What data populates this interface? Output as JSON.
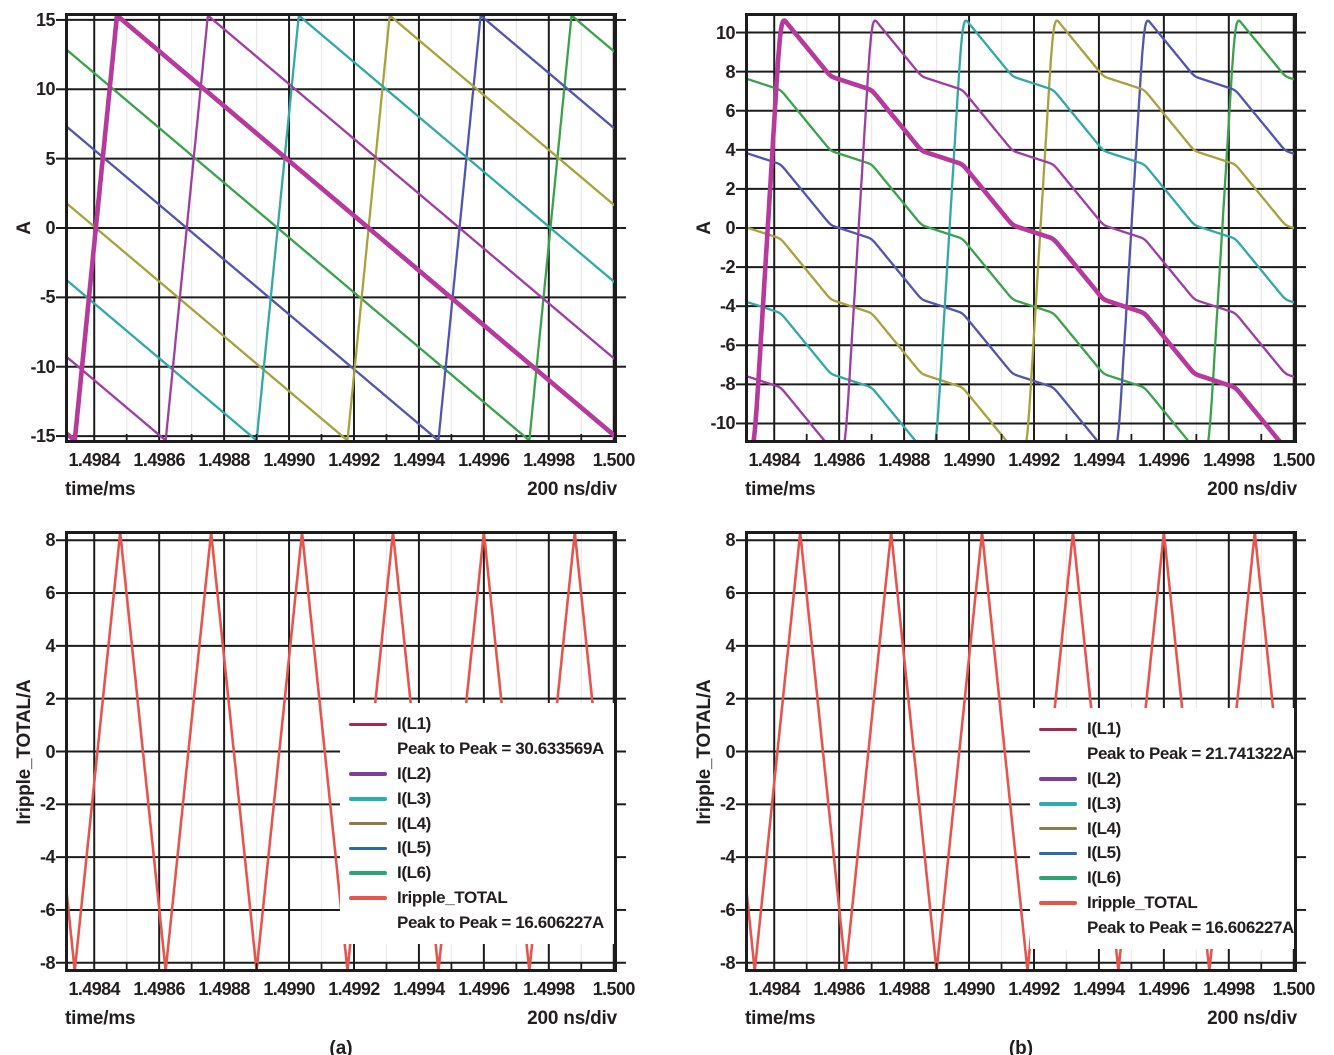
{
  "styles": {
    "background": "#ffffff",
    "text_color": "#221e1f",
    "frame_color": "#1c1c1c",
    "grid_major": "#1c1c1c",
    "grid_minor": "#ebebee",
    "legend_background": "#ffffff"
  },
  "chart_data": [
    {
      "id": "phase-currents-uncoupled",
      "type": "line",
      "position": "top-left",
      "ylabel": "A",
      "xlabel": "time/ms",
      "xnote": "200 ns/div",
      "xlim": [
        1.49831,
        1.50001
      ],
      "ylim": [
        -15.5,
        15.5
      ],
      "xtick_values": [
        1.4984,
        1.4986,
        1.4988,
        1.499,
        1.4992,
        1.4994,
        1.4996,
        1.4998,
        1.5
      ],
      "xtick_labels": [
        "1.4984",
        "1.4986",
        "1.4988",
        "1.4990",
        "1.4992",
        "1.4994",
        "1.4996",
        "1.4998",
        "1.500"
      ],
      "ytick_values": [
        15,
        10,
        5,
        0,
        -5,
        -10,
        -15
      ],
      "ytick_labels": [
        "15",
        "10",
        "5",
        "0",
        "-5",
        "-10",
        "-15"
      ],
      "minor_x_positions": [
        1.4985,
        1.4987,
        1.4989,
        1.4991,
        1.4993,
        1.4995,
        1.4997,
        1.4999
      ],
      "grid": true,
      "peak_to_peak_phase": "30.633569A",
      "series": [
        {
          "name": "I(L1)",
          "color": "#b6399c",
          "width": 4.6,
          "kind": "sawtooth",
          "min": -15.32,
          "max": 15.32,
          "rise_start": 1.49834,
          "rise_dur": 0.00013,
          "period": 0.00168
        },
        {
          "name": "I(L2)",
          "color": "#9c3ea2",
          "width": 2.3,
          "kind": "sawtooth",
          "min": -15.32,
          "max": 15.32,
          "rise_start": 1.49862,
          "rise_dur": 0.00013,
          "period": 0.00168
        },
        {
          "name": "I(L3)",
          "color": "#33a8a5",
          "width": 2.3,
          "kind": "sawtooth",
          "min": -15.32,
          "max": 15.32,
          "rise_start": 1.4989,
          "rise_dur": 0.00013,
          "period": 0.00168
        },
        {
          "name": "I(L4)",
          "color": "#a7a23e",
          "width": 2.3,
          "kind": "sawtooth",
          "min": -15.32,
          "max": 15.32,
          "rise_start": 1.49918,
          "rise_dur": 0.00013,
          "period": 0.00168
        },
        {
          "name": "I(L5)",
          "color": "#5056ae",
          "width": 2.3,
          "kind": "sawtooth",
          "min": -15.32,
          "max": 15.32,
          "rise_start": 1.49946,
          "rise_dur": 0.00013,
          "period": 0.00168
        },
        {
          "name": "I(L6)",
          "color": "#3ba24c",
          "width": 2.3,
          "kind": "sawtooth",
          "min": -15.32,
          "max": 15.32,
          "rise_start": 1.49974,
          "rise_dur": 0.00013,
          "period": 0.00168
        }
      ]
    },
    {
      "id": "phase-currents-coupled",
      "type": "line",
      "position": "top-right",
      "ylabel": "A",
      "xlabel": "time/ms",
      "xnote": "200 ns/div",
      "xlim": [
        1.49831,
        1.50001
      ],
      "ylim": [
        -11,
        11
      ],
      "xtick_values": [
        1.4984,
        1.4986,
        1.4988,
        1.499,
        1.4992,
        1.4994,
        1.4996,
        1.4998,
        1.5
      ],
      "xtick_labels": [
        "1.4984",
        "1.4986",
        "1.4988",
        "1.4990",
        "1.4992",
        "1.4994",
        "1.4996",
        "1.4998",
        "1.500"
      ],
      "ytick_values": [
        10,
        8,
        6,
        4,
        2,
        0,
        -2,
        -4,
        -6,
        -8,
        -10
      ],
      "ytick_labels": [
        "10",
        "8",
        "6",
        "4",
        "2",
        "0",
        "-2",
        "-4",
        "-6",
        "-8",
        "-10"
      ],
      "minor_x_positions": [
        1.4985,
        1.4987,
        1.4989,
        1.4991,
        1.4993,
        1.4995,
        1.4997,
        1.4999
      ],
      "grid": true,
      "peak_to_peak_phase": "21.741322A",
      "series": [
        {
          "name": "I(L1)",
          "color": "#b6399c",
          "width": 4.6,
          "kind": "coupled",
          "min": -10.87,
          "max": 10.87,
          "rise_start": 1.49834,
          "rise_dur": 8e-05,
          "period": 0.00168
        },
        {
          "name": "I(L2)",
          "color": "#9c3ea2",
          "width": 2.3,
          "kind": "coupled",
          "min": -10.87,
          "max": 10.87,
          "rise_start": 1.49862,
          "rise_dur": 8e-05,
          "period": 0.00168
        },
        {
          "name": "I(L3)",
          "color": "#33a8a5",
          "width": 2.3,
          "kind": "coupled",
          "min": -10.87,
          "max": 10.87,
          "rise_start": 1.4989,
          "rise_dur": 8e-05,
          "period": 0.00168
        },
        {
          "name": "I(L4)",
          "color": "#a7a23e",
          "width": 2.3,
          "kind": "coupled",
          "min": -10.87,
          "max": 10.87,
          "rise_start": 1.49918,
          "rise_dur": 8e-05,
          "period": 0.00168
        },
        {
          "name": "I(L5)",
          "color": "#5056ae",
          "width": 2.3,
          "kind": "coupled",
          "min": -10.87,
          "max": 10.87,
          "rise_start": 1.49946,
          "rise_dur": 8e-05,
          "period": 0.00168
        },
        {
          "name": "I(L6)",
          "color": "#3ba24c",
          "width": 2.3,
          "kind": "coupled",
          "min": -10.87,
          "max": 10.87,
          "rise_start": 1.49974,
          "rise_dur": 8e-05,
          "period": 0.00168
        }
      ]
    },
    {
      "id": "total-ripple-uncoupled",
      "type": "line",
      "position": "bottom-left",
      "caption": "(a)",
      "ylabel": "Iripple_TOTAL/A",
      "xlabel": "time/ms",
      "xnote": "200 ns/div",
      "xlim": [
        1.49831,
        1.50001
      ],
      "ylim": [
        -8.35,
        8.35
      ],
      "xtick_values": [
        1.4984,
        1.4986,
        1.4988,
        1.499,
        1.4992,
        1.4994,
        1.4996,
        1.4998,
        1.5
      ],
      "xtick_labels": [
        "1.4984",
        "1.4986",
        "1.4988",
        "1.4990",
        "1.4992",
        "1.4994",
        "1.4996",
        "1.4998",
        "1.500"
      ],
      "ytick_values": [
        8,
        6,
        4,
        2,
        0,
        -2,
        -4,
        -6,
        -8
      ],
      "ytick_labels": [
        "8",
        "6",
        "4",
        "2",
        "0",
        "-2",
        "-4",
        "-6",
        "-8"
      ],
      "minor_x_positions": [
        1.4985,
        1.4987,
        1.4989,
        1.4991,
        1.4993,
        1.4995,
        1.4997,
        1.4999
      ],
      "grid": true,
      "series": [
        {
          "name": "Iripple_TOTAL",
          "color": "#e4564d",
          "width": 2.6,
          "kind": "triangle",
          "min": -8.3,
          "max": 8.3,
          "peak_start": 1.49848,
          "period": 0.00028,
          "fall_dur": 0.00014
        }
      ],
      "legend": {
        "rows": [
          {
            "label": "I(L1)",
            "color": "#a42a55"
          },
          {
            "label": "Peak to Peak = 30.633569A",
            "indent": true
          },
          {
            "label": "I(L2)",
            "color": "#7a3e9d"
          },
          {
            "label": "I(L3)",
            "color": "#2badae"
          },
          {
            "label": "I(L4)",
            "color": "#8c7c47"
          },
          {
            "label": "I(L5)",
            "color": "#2b6ba6"
          },
          {
            "label": "I(L6)",
            "color": "#2aa377"
          },
          {
            "label": "Iripple_TOTAL",
            "color": "#e4564d"
          },
          {
            "label": "Peak to Peak = 16.606227A",
            "indent": true
          }
        ]
      }
    },
    {
      "id": "total-ripple-coupled",
      "type": "line",
      "position": "bottom-right",
      "caption": "(b)",
      "ylabel": "Iripple_TOTAL/A",
      "xlabel": "time/ms",
      "xnote": "200 ns/div",
      "xlim": [
        1.49831,
        1.50001
      ],
      "ylim": [
        -8.35,
        8.35
      ],
      "xtick_values": [
        1.4984,
        1.4986,
        1.4988,
        1.499,
        1.4992,
        1.4994,
        1.4996,
        1.4998,
        1.5
      ],
      "xtick_labels": [
        "1.4984",
        "1.4986",
        "1.4988",
        "1.4990",
        "1.4992",
        "1.4994",
        "1.4996",
        "1.4998",
        "1.500"
      ],
      "ytick_values": [
        8,
        6,
        4,
        2,
        0,
        -2,
        -4,
        -6,
        -8
      ],
      "ytick_labels": [
        "8",
        "6",
        "4",
        "2",
        "0",
        "-2",
        "-4",
        "-6",
        "-8"
      ],
      "minor_x_positions": [
        1.4985,
        1.4987,
        1.4989,
        1.4991,
        1.4993,
        1.4995,
        1.4997,
        1.4999
      ],
      "grid": true,
      "series": [
        {
          "name": "Iripple_TOTAL",
          "color": "#e4564d",
          "width": 2.6,
          "kind": "triangle",
          "min": -8.3,
          "max": 8.3,
          "peak_start": 1.49848,
          "period": 0.00028,
          "fall_dur": 0.00014
        }
      ],
      "legend": {
        "rows": [
          {
            "label": "I(L1)",
            "color": "#a42a55"
          },
          {
            "label": "Peak to Peak = 21.741322A",
            "indent": true
          },
          {
            "label": "I(L2)",
            "color": "#7a3e9d"
          },
          {
            "label": "I(L3)",
            "color": "#2badae"
          },
          {
            "label": "I(L4)",
            "color": "#8c7c47"
          },
          {
            "label": "I(L5)",
            "color": "#2b6ba6"
          },
          {
            "label": "I(L6)",
            "color": "#2aa377"
          },
          {
            "label": "Iripple_TOTAL",
            "color": "#e4564d"
          },
          {
            "label": "Peak to Peak = 16.606227A",
            "indent": true
          }
        ]
      }
    }
  ]
}
